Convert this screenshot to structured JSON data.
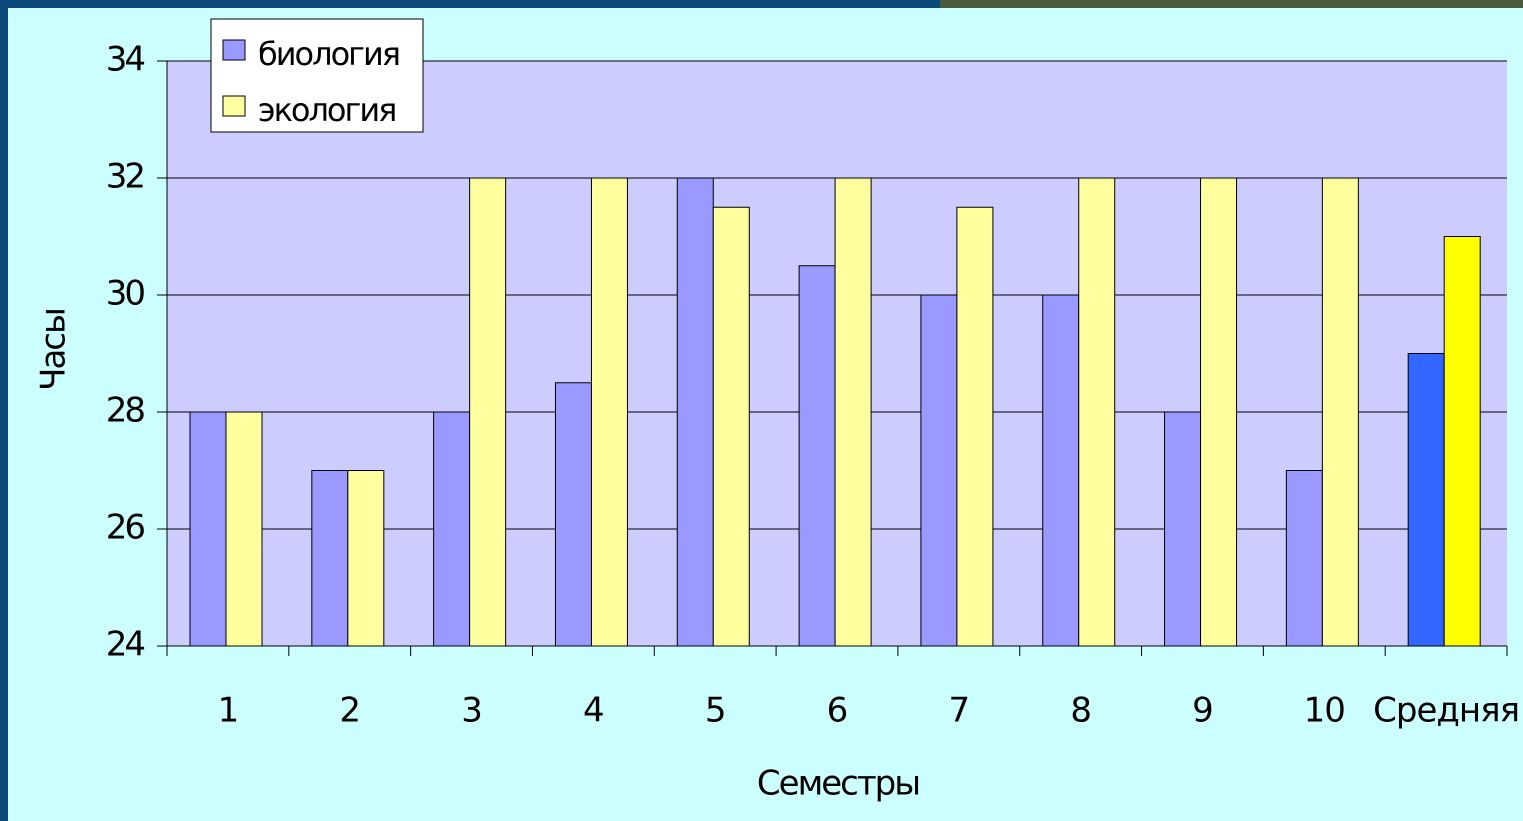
{
  "chart_data": {
    "type": "bar",
    "x_label": "Семестры",
    "y_label": "Часы",
    "categories": [
      "1",
      "2",
      "3",
      "4",
      "5",
      "6",
      "7",
      "8",
      "9",
      "10",
      "Средняя"
    ],
    "series": [
      {
        "name": "биология",
        "color": "#9999ff",
        "colors": [
          "#9999ff",
          "#9999ff",
          "#9999ff",
          "#9999ff",
          "#9999ff",
          "#9999ff",
          "#9999ff",
          "#9999ff",
          "#9999ff",
          "#9999ff",
          "#3366ff"
        ],
        "values": [
          28,
          27,
          28,
          28.5,
          32,
          30.5,
          30,
          30,
          28,
          27,
          29
        ]
      },
      {
        "name": "экология",
        "color": "#ffffa0",
        "colors": [
          "#ffffa0",
          "#ffffa0",
          "#ffffa0",
          "#ffffa0",
          "#ffffa0",
          "#ffffa0",
          "#ffffa0",
          "#ffffa0",
          "#ffffa0",
          "#ffffa0",
          "#ffff00"
        ],
        "values": [
          28,
          27,
          32,
          32,
          31.5,
          32,
          31.5,
          32,
          32,
          32,
          31
        ]
      }
    ],
    "ylim": [
      24,
      34
    ],
    "yticks": [
      24,
      26,
      28,
      30,
      32,
      34
    ],
    "grid": true,
    "legend": "top-left"
  }
}
